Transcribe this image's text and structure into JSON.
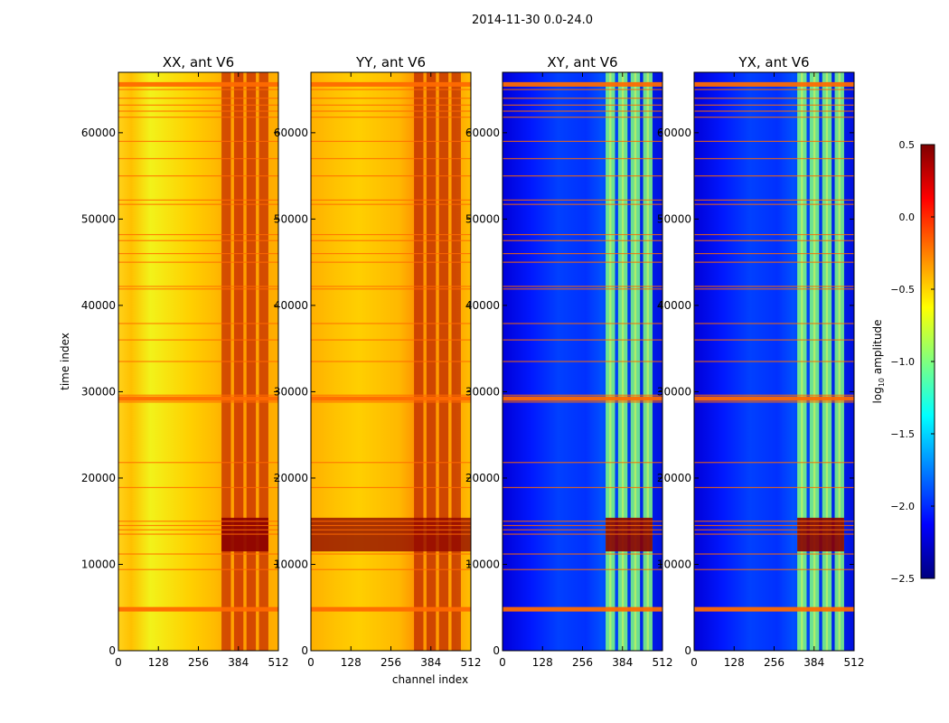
{
  "figure": {
    "suptitle": "2014-11-30 0.0-24.0",
    "xlabel": "channel index",
    "ylabel": "time index"
  },
  "colorbar": {
    "label_main": "log",
    "label_sub": "10",
    "label_tail": " amplitude",
    "range": [
      -2.5,
      0.5
    ],
    "ticks": [
      0.5,
      0.0,
      -0.5,
      -1.0,
      -1.5,
      -2.0,
      -2.5
    ],
    "tick_labels": [
      "0.5",
      "0.0",
      "−0.5",
      "−1.0",
      "−1.5",
      "−2.0",
      "−2.5"
    ],
    "colormap": "jet",
    "colormap_stops": [
      "#00007f",
      "#0000ff",
      "#007fff",
      "#00ffff",
      "#7fff7f",
      "#ffff00",
      "#ff7f00",
      "#ff0000",
      "#7f0000"
    ]
  },
  "chart_data": [
    {
      "type": "heatmap",
      "title": "XX, ant V6",
      "baseline_log10_amp": -0.4,
      "x": {
        "range": [
          0,
          512
        ],
        "ticks": [
          0,
          128,
          256,
          384,
          512
        ],
        "tick_labels": [
          "0",
          "128",
          "256",
          "384",
          "512"
        ]
      },
      "y": {
        "range": [
          0,
          67000
        ],
        "ticks": [
          0,
          10000,
          20000,
          30000,
          40000,
          50000,
          60000
        ],
        "tick_labels": [
          "0",
          "10000",
          "20000",
          "30000",
          "40000",
          "50000",
          "60000"
        ]
      },
      "high_amplitude_channel_ranges": [
        [
          330,
          360
        ],
        [
          370,
          400
        ],
        [
          410,
          440
        ],
        [
          450,
          480
        ]
      ]
    },
    {
      "type": "heatmap",
      "title": "YY, ant V6",
      "baseline_log10_amp": -0.3,
      "x": {
        "range": [
          0,
          512
        ],
        "ticks": [
          0,
          128,
          256,
          384,
          512
        ],
        "tick_labels": [
          "0",
          "128",
          "256",
          "384",
          "512"
        ]
      },
      "y": {
        "range": [
          0,
          67000
        ],
        "ticks": [
          0,
          10000,
          20000,
          30000,
          40000,
          50000,
          60000
        ],
        "tick_labels": [
          "0",
          "10000",
          "20000",
          "30000",
          "40000",
          "50000",
          "60000"
        ]
      },
      "high_amplitude_channel_ranges": [
        [
          330,
          360
        ],
        [
          370,
          400
        ],
        [
          410,
          440
        ],
        [
          450,
          480
        ]
      ]
    },
    {
      "type": "heatmap",
      "title": "XY, ant V6",
      "baseline_log10_amp": -2.1,
      "x": {
        "range": [
          0,
          512
        ],
        "ticks": [
          0,
          128,
          256,
          384,
          512
        ],
        "tick_labels": [
          "0",
          "128",
          "256",
          "384",
          "512"
        ]
      },
      "y": {
        "range": [
          0,
          67000
        ],
        "ticks": [
          0,
          10000,
          20000,
          30000,
          40000,
          50000,
          60000
        ],
        "tick_labels": [
          "0",
          "10000",
          "20000",
          "30000",
          "40000",
          "50000",
          "60000"
        ]
      },
      "high_amplitude_channel_ranges": [
        [
          330,
          360
        ],
        [
          370,
          400
        ],
        [
          410,
          440
        ],
        [
          450,
          480
        ]
      ]
    },
    {
      "type": "heatmap",
      "title": "YX, ant V6",
      "baseline_log10_amp": -2.1,
      "x": {
        "range": [
          0,
          512
        ],
        "ticks": [
          0,
          128,
          256,
          384,
          512
        ],
        "tick_labels": [
          "0",
          "128",
          "256",
          "384",
          "512"
        ]
      },
      "y": {
        "range": [
          0,
          67000
        ],
        "ticks": [
          0,
          10000,
          20000,
          30000,
          40000,
          50000,
          60000
        ],
        "tick_labels": [
          "0",
          "10000",
          "20000",
          "30000",
          "40000",
          "50000",
          "60000"
        ]
      },
      "high_amplitude_channel_ranges": [
        [
          330,
          360
        ],
        [
          370,
          400
        ],
        [
          410,
          440
        ],
        [
          450,
          480
        ]
      ]
    }
  ]
}
